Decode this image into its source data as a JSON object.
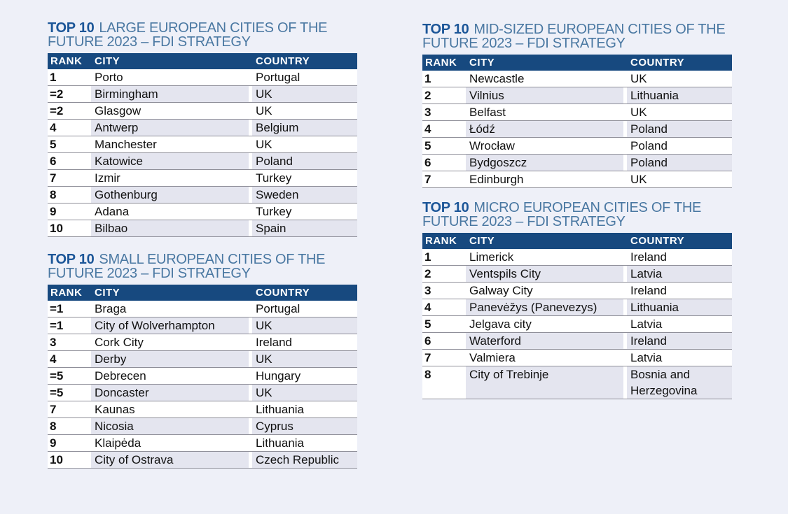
{
  "colors": {
    "page_background": "#eef0f8",
    "table_header_background": "#17497f",
    "table_header_text": "#ffffff",
    "title_accent_blue": "#1c5698",
    "title_blue": "#4a78a2",
    "row_alt_background": "#e4e5ef",
    "row_rule": "#8f8f99",
    "body_text": "#111111"
  },
  "tables": [
    {
      "title_bold": "TOP 10",
      "title_rest": "LARGE EUROPEAN CITIES OF THE FUTURE 2023 – FDI STRATEGY",
      "columns": [
        "RANK",
        "CITY",
        "COUNTRY"
      ],
      "rows": [
        {
          "rank": "1",
          "city": "Porto",
          "country": "Portugal"
        },
        {
          "rank": "=2",
          "city": "Birmingham",
          "country": "UK"
        },
        {
          "rank": "=2",
          "city": "Glasgow",
          "country": "UK"
        },
        {
          "rank": "4",
          "city": "Antwerp",
          "country": "Belgium"
        },
        {
          "rank": "5",
          "city": "Manchester",
          "country": "UK"
        },
        {
          "rank": "6",
          "city": "Katowice",
          "country": "Poland"
        },
        {
          "rank": "7",
          "city": "Izmir",
          "country": "Turkey"
        },
        {
          "rank": "8",
          "city": "Gothenburg",
          "country": "Sweden"
        },
        {
          "rank": "9",
          "city": "Adana",
          "country": "Turkey"
        },
        {
          "rank": "10",
          "city": "Bilbao",
          "country": "Spain"
        }
      ]
    },
    {
      "title_bold": "TOP 10",
      "title_rest": "SMALL EUROPEAN CITIES OF THE FUTURE 2023 – FDI STRATEGY",
      "columns": [
        "RANK",
        "CITY",
        "COUNTRY"
      ],
      "rows": [
        {
          "rank": "=1",
          "city": "Braga",
          "country": "Portugal"
        },
        {
          "rank": "=1",
          "city": "City of Wolverhampton",
          "country": "UK"
        },
        {
          "rank": "3",
          "city": "Cork City",
          "country": "Ireland"
        },
        {
          "rank": "4",
          "city": "Derby",
          "country": "UK"
        },
        {
          "rank": "=5",
          "city": "Debrecen",
          "country": "Hungary"
        },
        {
          "rank": "=5",
          "city": "Doncaster",
          "country": "UK"
        },
        {
          "rank": "7",
          "city": "Kaunas",
          "country": "Lithuania"
        },
        {
          "rank": "8",
          "city": "Nicosia",
          "country": "Cyprus"
        },
        {
          "rank": "9",
          "city": "Klaipėda",
          "country": "Lithuania"
        },
        {
          "rank": "10",
          "city": "City of Ostrava",
          "country": "Czech Republic"
        }
      ]
    },
    {
      "title_bold": "TOP 10",
      "title_rest": "MID-SIZED EUROPEAN CITIES OF THE FUTURE 2023 – FDI STRATEGY",
      "columns": [
        "RANK",
        "CITY",
        "COUNTRY"
      ],
      "rows": [
        {
          "rank": "1",
          "city": "Newcastle",
          "country": "UK"
        },
        {
          "rank": "2",
          "city": "Vilnius",
          "country": "Lithuania"
        },
        {
          "rank": "3",
          "city": "Belfast",
          "country": "UK"
        },
        {
          "rank": "4",
          "city": "Łódź",
          "country": "Poland"
        },
        {
          "rank": "5",
          "city": "Wrocław",
          "country": "Poland"
        },
        {
          "rank": "6",
          "city": "Bydgoszcz",
          "country": "Poland"
        },
        {
          "rank": "7",
          "city": "Edinburgh",
          "country": "UK"
        }
      ]
    },
    {
      "title_bold": "TOP 10",
      "title_rest": "MICRO EUROPEAN CITIES OF THE FUTURE 2023 – FDI STRATEGY",
      "columns": [
        "RANK",
        "CITY",
        "COUNTRY"
      ],
      "rows": [
        {
          "rank": "1",
          "city": "Limerick",
          "country": "Ireland"
        },
        {
          "rank": "2",
          "city": "Ventspils City",
          "country": "Latvia"
        },
        {
          "rank": "3",
          "city": "Galway City",
          "country": "Ireland"
        },
        {
          "rank": "4",
          "city": "Panevėžys (Panevezys)",
          "country": "Lithuania"
        },
        {
          "rank": "5",
          "city": "Jelgava city",
          "country": "Latvia"
        },
        {
          "rank": "6",
          "city": "Waterford",
          "country": "Ireland"
        },
        {
          "rank": "7",
          "city": "Valmiera",
          "country": "Latvia"
        },
        {
          "rank": "8",
          "city": "City of Trebinje",
          "country": "Bosnia and Herzegovina"
        }
      ]
    }
  ]
}
